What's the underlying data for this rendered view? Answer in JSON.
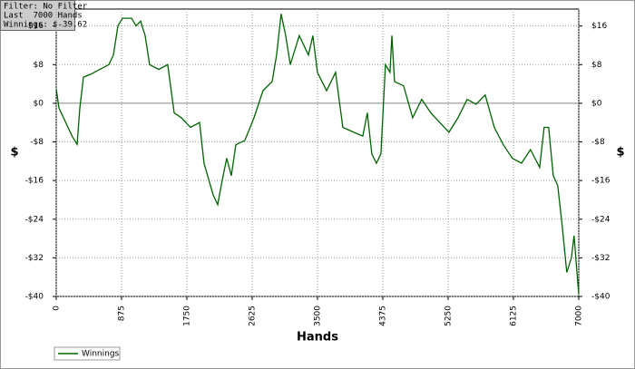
{
  "chart_data": {
    "type": "line",
    "info": [
      "Filter: No Filter",
      "Last  7000 Hands",
      "Winnings: $-39.62"
    ],
    "x_label": "Hands",
    "y_label": "$",
    "y2_label": "$",
    "x": [
      0,
      36,
      97,
      219,
      280,
      316,
      365,
      462,
      583,
      705,
      766,
      826,
      887,
      1009,
      1069,
      1130,
      1191,
      1251,
      1373,
      1494,
      1580,
      1677,
      1798,
      1920,
      1980,
      2102,
      2163,
      2223,
      2284,
      2345,
      2406,
      2527,
      2649,
      2770,
      2892,
      2952,
      3013,
      3074,
      3135,
      3256,
      3378,
      3438,
      3499,
      3621,
      3742,
      3839,
      3985,
      4106,
      4167,
      4228,
      4289,
      4350,
      4410,
      4471,
      4496,
      4532,
      4653,
      4775,
      4896,
      5018,
      5139,
      5261,
      5382,
      5504,
      5625,
      5747,
      5868,
      5990,
      6111,
      6233,
      6354,
      6476,
      6536,
      6597,
      6658,
      6718,
      6779,
      6840,
      6901,
      6937,
      7000
    ],
    "series": [
      {
        "name": "Winnings",
        "color": "#006400",
        "values": [
          3,
          -1,
          -3,
          -7,
          -8.5,
          -1,
          5.4,
          6,
          7,
          8,
          10,
          16,
          17.6,
          17.6,
          16,
          17,
          14,
          8,
          7,
          8,
          -2,
          -3,
          -5,
          -4,
          -12.4,
          -19,
          -21,
          -16,
          -11.4,
          -15,
          -8.6,
          -7.7,
          -3,
          2.6,
          4.5,
          10,
          18.5,
          14,
          8,
          14,
          10,
          14,
          6.4,
          2.6,
          6.4,
          -5,
          -6,
          -6.8,
          -2,
          -10.5,
          -12.4,
          -10.5,
          8,
          6.4,
          14,
          4.5,
          3.6,
          -3,
          0.8,
          -2,
          -4,
          -6,
          -3,
          0.8,
          -0.2,
          1.7,
          -5,
          -8.6,
          -11.4,
          -12.4,
          -9.6,
          -13.3,
          -5,
          -5,
          -15,
          -17,
          -25.5,
          -35,
          -32,
          -27.4,
          -39.62
        ]
      }
    ],
    "xlim": [
      0,
      7000
    ],
    "ylim": [
      -40,
      19.5
    ],
    "xticks": [
      0,
      875,
      1750,
      2625,
      3500,
      4375,
      5250,
      6125,
      7000
    ],
    "yticks": [
      {
        "value": -40,
        "label": "-$40"
      },
      {
        "value": -32,
        "label": "-$32"
      },
      {
        "value": -24,
        "label": "-$24"
      },
      {
        "value": -16,
        "label": "-$16"
      },
      {
        "value": -8,
        "label": "-$8"
      },
      {
        "value": 0,
        "label": "$0"
      },
      {
        "value": 8,
        "label": "$8"
      },
      {
        "value": 16,
        "label": "$16"
      }
    ],
    "grid": true
  }
}
